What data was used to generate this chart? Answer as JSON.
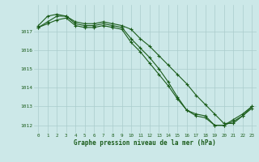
{
  "background_color": "#cce8e8",
  "grid_color": "#aacccc",
  "line_color": "#1a5c1a",
  "x_labels": [
    "0",
    "1",
    "2",
    "3",
    "4",
    "5",
    "6",
    "7",
    "8",
    "9",
    "10",
    "11",
    "12",
    "13",
    "14",
    "15",
    "16",
    "17",
    "18",
    "19",
    "20",
    "21",
    "22",
    "23"
  ],
  "x_values": [
    0,
    1,
    2,
    3,
    4,
    5,
    6,
    7,
    8,
    9,
    10,
    11,
    12,
    13,
    14,
    15,
    16,
    17,
    18,
    19,
    20,
    21,
    22,
    23
  ],
  "series1": [
    1017.3,
    1017.8,
    1017.9,
    1017.8,
    1017.5,
    1017.4,
    1017.4,
    1017.5,
    1017.4,
    1017.3,
    1017.1,
    1016.6,
    1016.2,
    1015.7,
    1015.2,
    1014.7,
    1014.2,
    1013.6,
    1013.1,
    1012.6,
    1012.1,
    1012.1,
    1012.5,
    1013.0
  ],
  "series2": [
    1017.2,
    1017.5,
    1017.8,
    1017.8,
    1017.4,
    1017.3,
    1017.3,
    1017.4,
    1017.3,
    1017.2,
    1016.6,
    1016.1,
    1015.6,
    1015.0,
    1014.3,
    1013.5,
    1012.8,
    1012.6,
    1012.5,
    1012.0,
    1012.0,
    1012.3,
    1012.6,
    1013.0
  ],
  "series3": [
    1017.2,
    1017.4,
    1017.6,
    1017.7,
    1017.3,
    1017.2,
    1017.2,
    1017.3,
    1017.2,
    1017.1,
    1016.4,
    1015.9,
    1015.3,
    1014.7,
    1014.1,
    1013.4,
    1012.8,
    1012.5,
    1012.4,
    1012.0,
    1012.0,
    1012.2,
    1012.5,
    1012.9
  ],
  "ylim_min": 1011.6,
  "ylim_max": 1018.4,
  "yticks": [
    1012,
    1013,
    1014,
    1015,
    1016,
    1017
  ],
  "xlabel": "Graphe pression niveau de la mer (hPa)",
  "marker": "+",
  "marker_size": 3,
  "line_width": 0.8
}
